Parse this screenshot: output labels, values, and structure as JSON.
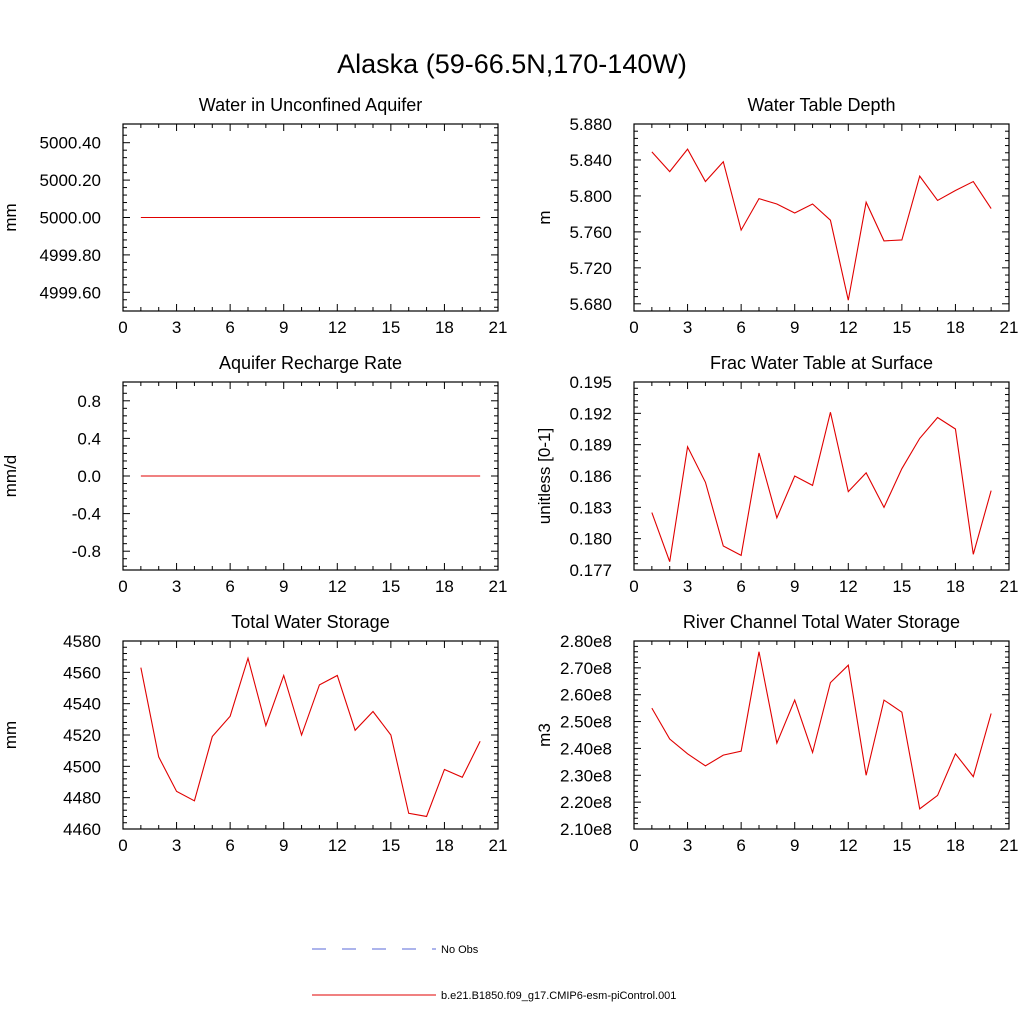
{
  "page_title": "Alaska (59-66.5N,170-140W)",
  "legend": {
    "items": [
      {
        "label": "No Obs",
        "color": "#5a6ad8",
        "style": "dashed"
      },
      {
        "label": "b.e21.B1850.f09_g17.CMIP6-esm-piControl.001",
        "color": "#e00000",
        "style": "solid"
      }
    ]
  },
  "chart_data": [
    {
      "type": "line",
      "title": "Water in Unconfined Aquifer",
      "ylabel": "mm",
      "xlim": [
        0,
        21
      ],
      "ylim": [
        4999.5,
        5000.5
      ],
      "xticks": [
        0,
        3,
        6,
        9,
        12,
        15,
        18,
        21
      ],
      "yticks": [
        4999.6,
        4999.8,
        5000.0,
        5000.2,
        5000.4
      ],
      "ytick_labels": [
        "4999.60",
        "4999.80",
        "5000.00",
        "5000.20",
        "5000.40"
      ],
      "series": [
        {
          "color": "#e00000",
          "x": [
            1,
            2,
            3,
            4,
            5,
            6,
            7,
            8,
            9,
            10,
            11,
            12,
            13,
            14,
            15,
            16,
            17,
            18,
            19,
            20
          ],
          "values": [
            5000,
            5000,
            5000,
            5000,
            5000,
            5000,
            5000,
            5000,
            5000,
            5000,
            5000,
            5000,
            5000,
            5000,
            5000,
            5000,
            5000,
            5000,
            5000,
            5000
          ]
        }
      ]
    },
    {
      "type": "line",
      "title": "Water Table Depth",
      "ylabel": "m",
      "xlim": [
        0,
        21
      ],
      "ylim": [
        5.672,
        5.88
      ],
      "xticks": [
        0,
        3,
        6,
        9,
        12,
        15,
        18,
        21
      ],
      "yticks": [
        5.68,
        5.72,
        5.76,
        5.8,
        5.84,
        5.88
      ],
      "ytick_labels": [
        "5.680",
        "5.720",
        "5.760",
        "5.800",
        "5.840",
        "5.880"
      ],
      "series": [
        {
          "color": "#e00000",
          "x": [
            1,
            2,
            3,
            4,
            5,
            6,
            7,
            8,
            9,
            10,
            11,
            12,
            13,
            14,
            15,
            16,
            17,
            18,
            19,
            20
          ],
          "values": [
            5.849,
            5.827,
            5.852,
            5.816,
            5.838,
            5.762,
            5.797,
            5.791,
            5.781,
            5.791,
            5.773,
            5.684,
            5.793,
            5.75,
            5.751,
            5.822,
            5.795,
            5.806,
            5.816,
            5.786
          ]
        }
      ]
    },
    {
      "type": "line",
      "title": "Aquifer Recharge Rate",
      "ylabel": "mm/d",
      "xlim": [
        0,
        21
      ],
      "ylim": [
        -1,
        1
      ],
      "xticks": [
        0,
        3,
        6,
        9,
        12,
        15,
        18,
        21
      ],
      "yticks": [
        -0.8,
        -0.4,
        0.0,
        0.4,
        0.8
      ],
      "ytick_labels": [
        "-0.8",
        "-0.4",
        "0.0",
        "0.4",
        "0.8"
      ],
      "series": [
        {
          "color": "#e00000",
          "x": [
            1,
            2,
            3,
            4,
            5,
            6,
            7,
            8,
            9,
            10,
            11,
            12,
            13,
            14,
            15,
            16,
            17,
            18,
            19,
            20
          ],
          "values": [
            0,
            0,
            0,
            0,
            0,
            0,
            0,
            0,
            0,
            0,
            0,
            0,
            0,
            0,
            0,
            0,
            0,
            0,
            0,
            0
          ]
        }
      ]
    },
    {
      "type": "line",
      "title": "Frac Water Table at Surface",
      "ylabel": "unitless [0-1]",
      "xlim": [
        0,
        21
      ],
      "ylim": [
        0.177,
        0.195
      ],
      "xticks": [
        0,
        3,
        6,
        9,
        12,
        15,
        18,
        21
      ],
      "yticks": [
        0.177,
        0.18,
        0.183,
        0.186,
        0.189,
        0.192,
        0.195
      ],
      "ytick_labels": [
        "0.177",
        "0.180",
        "0.183",
        "0.186",
        "0.189",
        "0.192",
        "0.195"
      ],
      "series": [
        {
          "color": "#e00000",
          "x": [
            1,
            2,
            3,
            4,
            5,
            6,
            7,
            8,
            9,
            10,
            11,
            12,
            13,
            14,
            15,
            16,
            17,
            18,
            19,
            20
          ],
          "values": [
            0.1825,
            0.1778,
            0.1888,
            0.1854,
            0.1793,
            0.1784,
            0.1882,
            0.182,
            0.186,
            0.1851,
            0.1921,
            0.1845,
            0.1863,
            0.183,
            0.1867,
            0.1896,
            0.1916,
            0.1905,
            0.1785,
            0.1846
          ]
        }
      ]
    },
    {
      "type": "line",
      "title": "Total Water Storage",
      "ylabel": "mm",
      "xlim": [
        0,
        21
      ],
      "ylim": [
        4460,
        4580
      ],
      "xticks": [
        0,
        3,
        6,
        9,
        12,
        15,
        18,
        21
      ],
      "yticks": [
        4460,
        4480,
        4500,
        4520,
        4540,
        4560,
        4580
      ],
      "ytick_labels": [
        "4460",
        "4480",
        "4500",
        "4520",
        "4540",
        "4560",
        "4580"
      ],
      "series": [
        {
          "color": "#e00000",
          "x": [
            1,
            2,
            3,
            4,
            5,
            6,
            7,
            8,
            9,
            10,
            11,
            12,
            13,
            14,
            15,
            16,
            17,
            18,
            19,
            20
          ],
          "values": [
            4563,
            4506,
            4484,
            4478,
            4519,
            4532,
            4569,
            4526,
            4558,
            4520,
            4552,
            4558,
            4523,
            4535,
            4520,
            4470,
            4468,
            4498,
            4493,
            4516
          ]
        }
      ]
    },
    {
      "type": "line",
      "title": "River Channel Total Water Storage",
      "ylabel": "m3",
      "xlim": [
        0,
        21
      ],
      "ylim": [
        210000000,
        280000000
      ],
      "xticks": [
        0,
        3,
        6,
        9,
        12,
        15,
        18,
        21
      ],
      "yticks": [
        210000000,
        220000000,
        230000000,
        240000000,
        250000000,
        260000000,
        270000000,
        280000000
      ],
      "ytick_labels": [
        "2.10e8",
        "2.20e8",
        "2.30e8",
        "2.40e8",
        "2.50e8",
        "2.60e8",
        "2.70e8",
        "2.80e8"
      ],
      "series": [
        {
          "color": "#e00000",
          "x": [
            1,
            2,
            3,
            4,
            5,
            6,
            7,
            8,
            9,
            10,
            11,
            12,
            13,
            14,
            15,
            16,
            17,
            18,
            19,
            20
          ],
          "values": [
            255000000,
            243500000,
            238000000,
            233500000,
            237500000,
            239000000,
            276000000,
            242000000,
            258000000,
            238500000,
            264500000,
            271000000,
            230000000,
            258000000,
            253500000,
            217500000,
            222500000,
            238000000,
            229500000,
            253000000
          ]
        }
      ]
    }
  ]
}
